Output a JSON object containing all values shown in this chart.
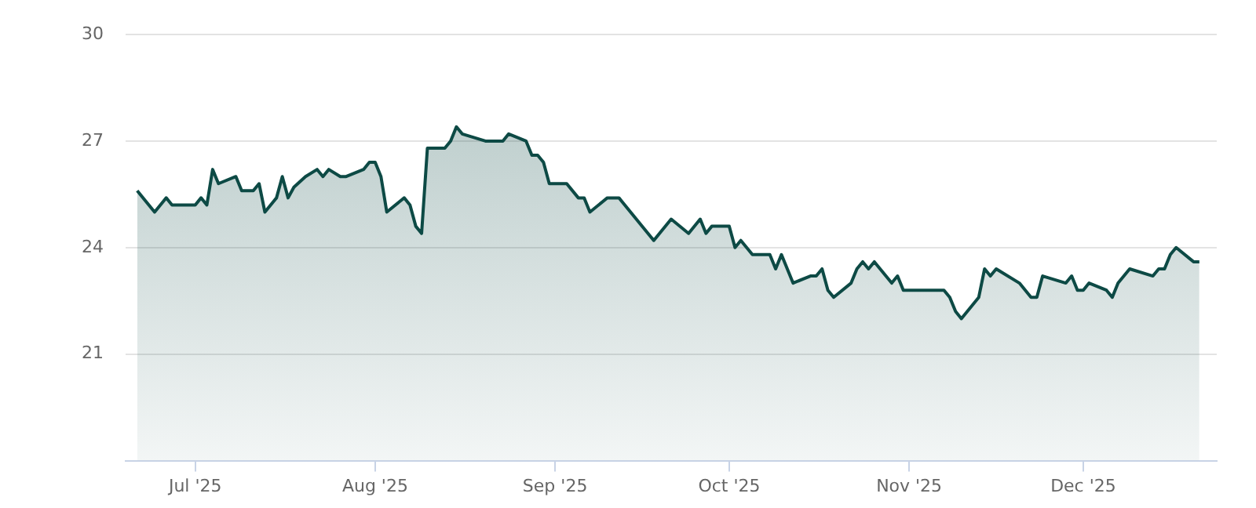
{
  "chart_data": {
    "type": "area",
    "color": "#0d4a45",
    "x": [
      "2025-06-21",
      "2025-06-24",
      "2025-06-26",
      "2025-06-27",
      "2025-07-01",
      "2025-07-02",
      "2025-07-03",
      "2025-07-04",
      "2025-07-05",
      "2025-07-08",
      "2025-07-09",
      "2025-07-11",
      "2025-07-12",
      "2025-07-13",
      "2025-07-15",
      "2025-07-16",
      "2025-07-17",
      "2025-07-18",
      "2025-07-20",
      "2025-07-22",
      "2025-07-23",
      "2025-07-24",
      "2025-07-26",
      "2025-07-27",
      "2025-07-30",
      "2025-07-31",
      "2025-08-01",
      "2025-08-02",
      "2025-08-03",
      "2025-08-06",
      "2025-08-07",
      "2025-08-08",
      "2025-08-09",
      "2025-08-10",
      "2025-08-13",
      "2025-08-14",
      "2025-08-15",
      "2025-08-16",
      "2025-08-20",
      "2025-08-23",
      "2025-08-24",
      "2025-08-27",
      "2025-08-28",
      "2025-08-29",
      "2025-08-30",
      "2025-08-31",
      "2025-09-03",
      "2025-09-05",
      "2025-09-06",
      "2025-09-07",
      "2025-09-10",
      "2025-09-12",
      "2025-09-18",
      "2025-09-21",
      "2025-09-24",
      "2025-09-26",
      "2025-09-27",
      "2025-09-28",
      "2025-10-01",
      "2025-10-02",
      "2025-10-03",
      "2025-10-05",
      "2025-10-08",
      "2025-10-09",
      "2025-10-10",
      "2025-10-12",
      "2025-10-15",
      "2025-10-16",
      "2025-10-17",
      "2025-10-18",
      "2025-10-19",
      "2025-10-22",
      "2025-10-23",
      "2025-10-24",
      "2025-10-25",
      "2025-10-26",
      "2025-10-29",
      "2025-10-30",
      "2025-10-31",
      "2025-11-07",
      "2025-11-08",
      "2025-11-09",
      "2025-11-10",
      "2025-11-13",
      "2025-11-14",
      "2025-11-15",
      "2025-11-16",
      "2025-11-20",
      "2025-11-22",
      "2025-11-23",
      "2025-11-24",
      "2025-11-28",
      "2025-11-29",
      "2025-11-30",
      "2025-12-01",
      "2025-12-02",
      "2025-12-05",
      "2025-12-06",
      "2025-12-07",
      "2025-12-09",
      "2025-12-13",
      "2025-12-14",
      "2025-12-15",
      "2025-12-16",
      "2025-12-17",
      "2025-12-20",
      "2025-12-21"
    ],
    "values": [
      25.6,
      25.0,
      25.4,
      25.2,
      25.2,
      25.4,
      25.2,
      26.2,
      25.8,
      26.0,
      25.6,
      25.6,
      25.8,
      25.0,
      25.4,
      26.0,
      25.4,
      25.7,
      26.0,
      26.2,
      26.0,
      26.2,
      26.0,
      26.0,
      26.2,
      26.4,
      26.4,
      26.0,
      25.0,
      25.4,
      25.2,
      24.6,
      24.4,
      26.8,
      26.8,
      27.0,
      27.4,
      27.2,
      27.0,
      27.0,
      27.2,
      27.0,
      26.6,
      26.6,
      26.4,
      25.8,
      25.8,
      25.4,
      25.4,
      25.0,
      25.4,
      25.4,
      24.2,
      24.8,
      24.4,
      24.8,
      24.4,
      24.6,
      24.6,
      24.0,
      24.2,
      23.8,
      23.8,
      23.4,
      23.8,
      23.0,
      23.2,
      23.2,
      23.4,
      22.8,
      22.6,
      23.0,
      23.4,
      23.6,
      23.4,
      23.6,
      23.0,
      23.2,
      22.8,
      22.8,
      22.6,
      22.2,
      22.0,
      22.6,
      23.4,
      23.2,
      23.4,
      23.0,
      22.6,
      22.6,
      23.2,
      23.0,
      23.2,
      22.8,
      22.8,
      23.0,
      22.8,
      22.6,
      23.0,
      23.4,
      23.2,
      23.4,
      23.4,
      23.8,
      24.0,
      23.6,
      23.6
    ],
    "xlim": [
      "2025-06-19",
      "2025-12-24"
    ],
    "xticks": [
      {
        "value": "2025-07-01",
        "label": "Jul '25"
      },
      {
        "value": "2025-08-01",
        "label": "Aug '25"
      },
      {
        "value": "2025-09-01",
        "label": "Sep '25"
      },
      {
        "value": "2025-10-01",
        "label": "Oct '25"
      },
      {
        "value": "2025-11-01",
        "label": "Nov '25"
      },
      {
        "value": "2025-12-01",
        "label": "Dec '25"
      }
    ],
    "ylim": [
      18,
      30
    ],
    "yticks": [
      21,
      24,
      27,
      30
    ],
    "grid": "y",
    "legend": false,
    "marker": "none",
    "line_style": "solid"
  }
}
